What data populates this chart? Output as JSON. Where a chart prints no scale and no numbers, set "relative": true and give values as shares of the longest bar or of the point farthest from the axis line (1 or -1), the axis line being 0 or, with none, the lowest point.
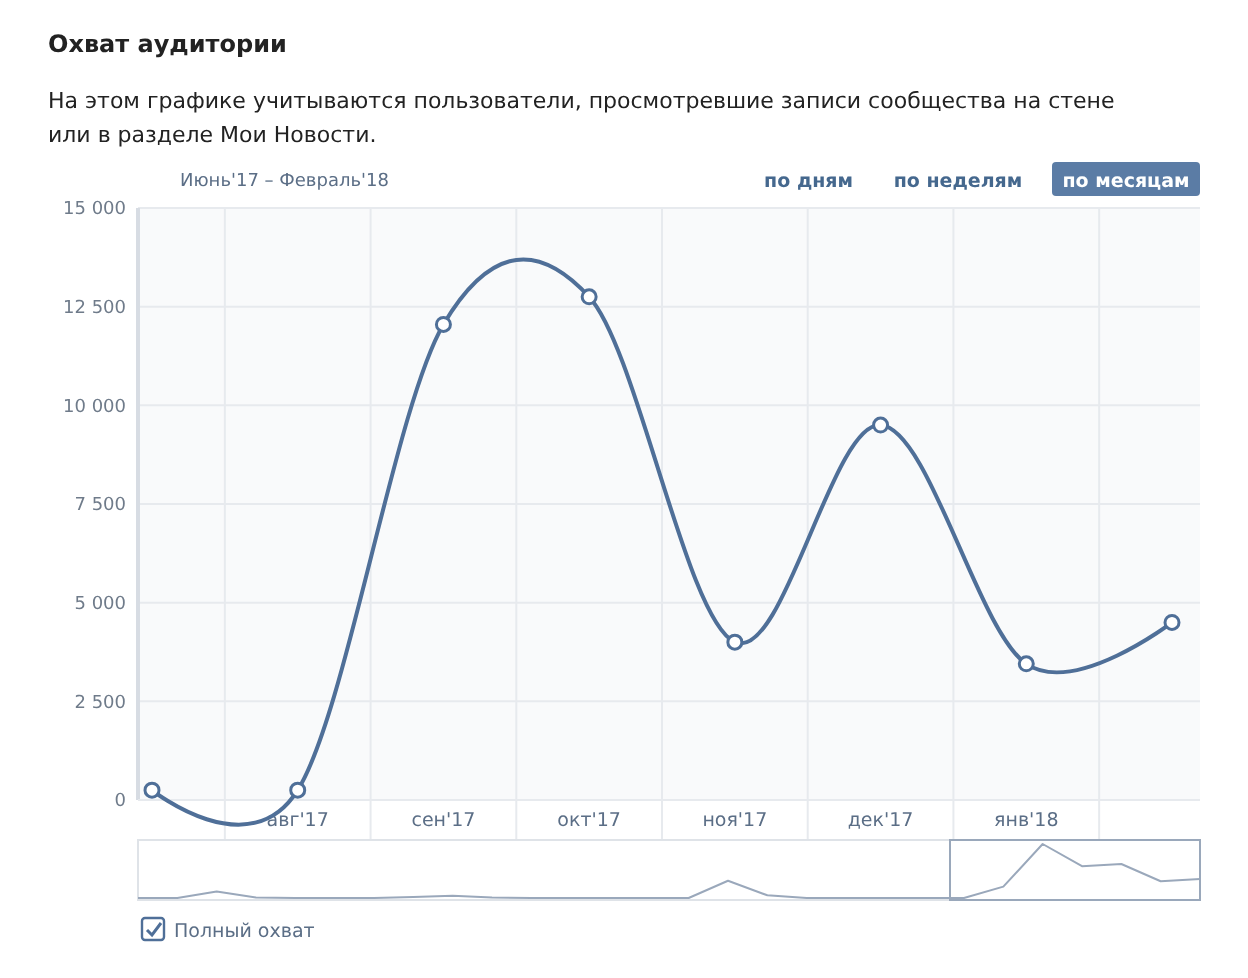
{
  "chart_data": [
    {
      "type": "line",
      "title": "Охват аудитории",
      "subtitle": "На этом графике учитываются пользователи, просмотревшие записи сообщества на стене или в разделе Мои Новости.",
      "annotations": [
        "Июнь'17 – Февраль'18",
        "по дням",
        "по неделям",
        "по месяцам"
      ],
      "categories": [
        null,
        "авг'17",
        "сен'17",
        "окт'17",
        "ноя'17",
        "дек'17",
        "янв'18",
        null
      ],
      "series": [
        {
          "name": "Полный охват",
          "color": "#4f6f98",
          "values": [
            250,
            250,
            12050,
            12750,
            4000,
            9500,
            3450,
            4500
          ]
        }
      ],
      "ylim": [
        0,
        15000
      ],
      "yticks": [
        0,
        {
          "value": 2500,
          "label": "2 500"
        },
        {
          "value": 5000,
          "label": "5 000"
        },
        {
          "value": 7500,
          "label": "7 500"
        },
        {
          "value": 10000,
          "label": "10 000"
        },
        {
          "value": 12500,
          "label": "12 500"
        },
        {
          "value": 15000,
          "label": "15 000"
        }
      ],
      "grid": true,
      "marker": "circle",
      "line_style": "solid",
      "legend": "bottom left"
    },
    {
      "type": "line",
      "relative": true,
      "categories": [
        null,
        null,
        null,
        null,
        null,
        null,
        null,
        null,
        null,
        null,
        null,
        null,
        null,
        null,
        null,
        null,
        null,
        null,
        null,
        null,
        null,
        null,
        null,
        null,
        null,
        null,
        null,
        null
      ],
      "series": [
        {
          "color": "#9aa8bb",
          "values": [
            0,
            0,
            0.12,
            0.01,
            0,
            0,
            0,
            0.02,
            0.04,
            0.01,
            0,
            0,
            0,
            0,
            0,
            0.32,
            0.05,
            0,
            0,
            0,
            0,
            0,
            0.21,
            1,
            0.59,
            0.63,
            0.31,
            0.35
          ]
        }
      ]
    }
  ]
}
